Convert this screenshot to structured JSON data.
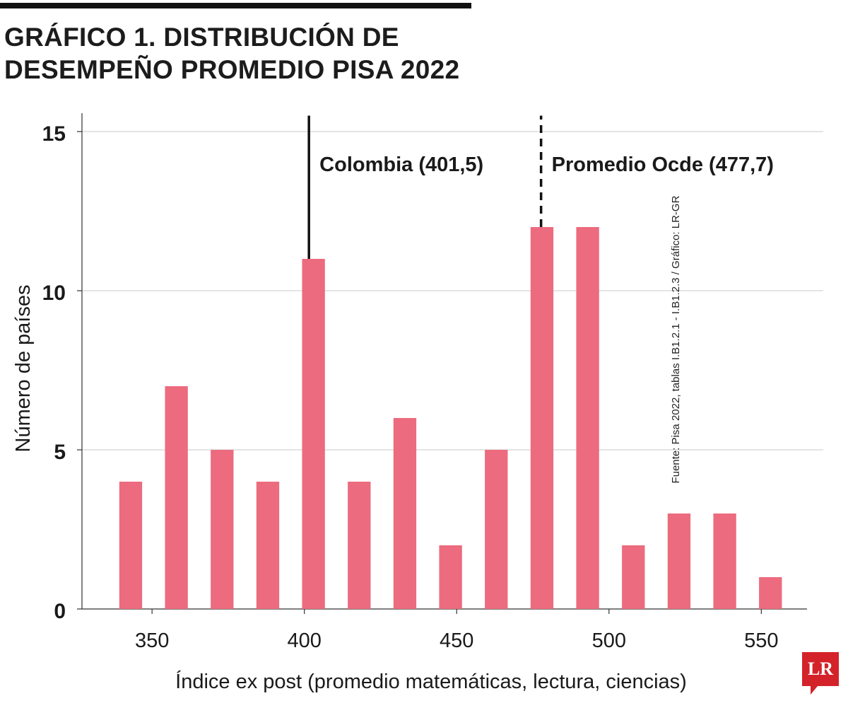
{
  "title_lines": [
    "GRÁFICO 1. DISTRIBUCIÓN DE",
    "DESEMPEÑO PROMEDIO PISA 2022"
  ],
  "source": "Fuente: Pisa 2022, tablas I.B1.2.1 - I.B1.2.3  / Gráfico: LR-GR",
  "logo": "LR",
  "colors": {
    "bar": "#ec6b7e",
    "grid": "#c8c8c8",
    "axis": "#333333",
    "text": "#1a1a1a"
  },
  "chart_data": {
    "type": "bar",
    "title": "GRÁFICO 1. DISTRIBUCIÓN DE DESEMPEÑO PROMEDIO PISA 2022",
    "xlabel": "Índice ex post (promedio matemáticas, lectura, ciencias)",
    "ylabel": "Número de países",
    "xlim": [
      327,
      565
    ],
    "ylim": [
      0,
      15
    ],
    "x_ticks": [
      350,
      400,
      450,
      500,
      550
    ],
    "y_ticks": [
      0,
      5,
      10,
      15
    ],
    "grid": true,
    "bin_width": 7.5,
    "bins": [
      {
        "x": 343,
        "value": 4
      },
      {
        "x": 358,
        "value": 7
      },
      {
        "x": 373,
        "value": 5
      },
      {
        "x": 388,
        "value": 4
      },
      {
        "x": 403,
        "value": 11
      },
      {
        "x": 418,
        "value": 4
      },
      {
        "x": 433,
        "value": 6
      },
      {
        "x": 448,
        "value": 2
      },
      {
        "x": 463,
        "value": 5
      },
      {
        "x": 478,
        "value": 12
      },
      {
        "x": 493,
        "value": 12
      },
      {
        "x": 508,
        "value": 2
      },
      {
        "x": 523,
        "value": 3
      },
      {
        "x": 538,
        "value": 3
      },
      {
        "x": 553,
        "value": 1
      }
    ],
    "annotations": [
      {
        "label": "Colombia (401,5)",
        "x": 401.5,
        "y_from": 11,
        "y_to": 15.5,
        "style": "solid"
      },
      {
        "label": "Promedio Ocde (477,7)",
        "x": 477.7,
        "y_from": 12,
        "y_to": 15.5,
        "style": "dashed"
      }
    ]
  }
}
